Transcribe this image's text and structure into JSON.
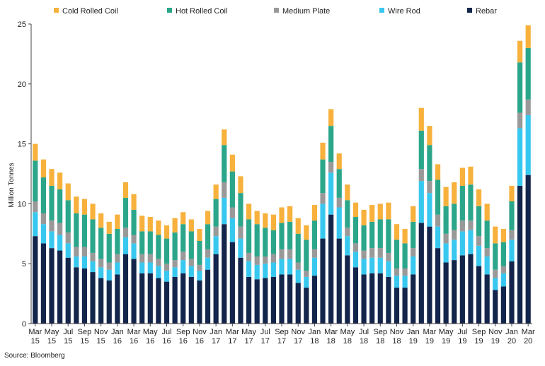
{
  "source": "Source: Bloomberg",
  "chart_data": {
    "type": "bar",
    "stacked": true,
    "ylabel": "Million Tonnes",
    "ylim": [
      0,
      25
    ],
    "yticks": [
      0,
      5,
      10,
      15,
      20,
      25
    ],
    "grid": false,
    "legend_position": "top",
    "x_tick_labels": [
      {
        "month": "Mar",
        "year": "15",
        "index": 0
      },
      {
        "month": "May",
        "year": "15",
        "index": 2
      },
      {
        "month": "Jul",
        "year": "15",
        "index": 4
      },
      {
        "month": "Sep",
        "year": "15",
        "index": 6
      },
      {
        "month": "Nov",
        "year": "15",
        "index": 8
      },
      {
        "month": "Jan",
        "year": "16",
        "index": 10
      },
      {
        "month": "Mar",
        "year": "16",
        "index": 12
      },
      {
        "month": "May",
        "year": "16",
        "index": 14
      },
      {
        "month": "Jul",
        "year": "16",
        "index": 16
      },
      {
        "month": "Sep",
        "year": "16",
        "index": 18
      },
      {
        "month": "Nov",
        "year": "16",
        "index": 20
      },
      {
        "month": "Jan",
        "year": "17",
        "index": 22
      },
      {
        "month": "Mar",
        "year": "17",
        "index": 24
      },
      {
        "month": "May",
        "year": "17",
        "index": 26
      },
      {
        "month": "Jul",
        "year": "17",
        "index": 28
      },
      {
        "month": "Sep",
        "year": "17",
        "index": 30
      },
      {
        "month": "Nov",
        "year": "17",
        "index": 32
      },
      {
        "month": "Jan",
        "year": "18",
        "index": 34
      },
      {
        "month": "Mar",
        "year": "18",
        "index": 36
      },
      {
        "month": "May",
        "year": "18",
        "index": 38
      },
      {
        "month": "Jul",
        "year": "18",
        "index": 40
      },
      {
        "month": "Sep",
        "year": "18",
        "index": 42
      },
      {
        "month": "Nov",
        "year": "18",
        "index": 44
      },
      {
        "month": "Jan",
        "year": "19",
        "index": 46
      },
      {
        "month": "Mar",
        "year": "19",
        "index": 48
      },
      {
        "month": "May",
        "year": "19",
        "index": 50
      },
      {
        "month": "Jul",
        "year": "19",
        "index": 52
      },
      {
        "month": "Sep",
        "year": "19",
        "index": 54
      },
      {
        "month": "Nov",
        "year": "19",
        "index": 56
      },
      {
        "month": "Jan",
        "year": "20",
        "index": 58
      },
      {
        "month": "Mar",
        "year": "20",
        "index": 60
      }
    ],
    "categories": [
      "Mar 15",
      "Apr 15",
      "May 15",
      "Jun 15",
      "Jul 15",
      "Aug 15",
      "Sep 15",
      "Oct 15",
      "Nov 15",
      "Dec 15",
      "Jan 16",
      "Feb 16",
      "Mar 16",
      "Apr 16",
      "May 16",
      "Jun 16",
      "Jul 16",
      "Aug 16",
      "Sep 16",
      "Oct 16",
      "Nov 16",
      "Dec 16",
      "Jan 17",
      "Feb 17",
      "Mar 17",
      "Apr 17",
      "May 17",
      "Jun 17",
      "Jul 17",
      "Aug 17",
      "Sep 17",
      "Oct 17",
      "Nov 17",
      "Dec 17",
      "Jan 18",
      "Feb 18",
      "Mar 18",
      "Apr 18",
      "May 18",
      "Jun 18",
      "Jul 18",
      "Aug 18",
      "Sep 18",
      "Oct 18",
      "Nov 18",
      "Dec 18",
      "Jan 19",
      "Feb 19",
      "Mar 19",
      "Apr 19",
      "May 19",
      "Jun 19",
      "Jul 19",
      "Aug 19",
      "Sep 19",
      "Oct 19",
      "Nov 19",
      "Dec 19",
      "Jan 20",
      "Feb 20",
      "Mar 20"
    ],
    "series": [
      {
        "name": "Rebar",
        "color": "#13254a",
        "values": [
          7.3,
          6.7,
          6.3,
          6.1,
          5.5,
          4.7,
          4.6,
          4.3,
          3.8,
          3.6,
          4.1,
          5.8,
          5.4,
          4.2,
          4.2,
          3.8,
          3.5,
          3.9,
          4.2,
          3.9,
          3.6,
          4.5,
          5.8,
          8.3,
          6.8,
          5.5,
          3.9,
          3.7,
          3.8,
          3.9,
          4.1,
          4.1,
          3.4,
          3.0,
          4.0,
          7.1,
          9.1,
          7.1,
          5.7,
          4.7,
          4.1,
          4.2,
          4.2,
          3.9,
          3.0,
          3.0,
          4.1,
          8.4,
          8.1,
          6.3,
          5.1,
          5.3,
          5.7,
          5.8,
          4.8,
          4.1,
          2.8,
          3.1,
          5.2,
          11.5,
          12.4
        ]
      },
      {
        "name": "Wire Rod",
        "color": "#38c8ef",
        "values": [
          2.0,
          1.6,
          1.4,
          1.3,
          1.2,
          0.9,
          1.0,
          0.9,
          0.9,
          0.9,
          1.0,
          1.4,
          1.3,
          0.9,
          0.9,
          1.0,
          0.9,
          0.8,
          1.1,
          0.9,
          0.8,
          1.0,
          1.5,
          2.2,
          2.0,
          1.6,
          1.3,
          1.2,
          1.2,
          1.2,
          1.3,
          1.3,
          1.1,
          0.9,
          1.5,
          2.9,
          3.5,
          2.6,
          1.6,
          1.3,
          1.3,
          1.3,
          1.3,
          1.3,
          1.0,
          1.0,
          1.5,
          3.5,
          2.8,
          1.8,
          1.6,
          1.7,
          2.0,
          2.0,
          1.7,
          1.5,
          1.0,
          1.1,
          1.8,
          4.8,
          5.0
        ]
      },
      {
        "name": "Medium Plate",
        "color": "#999999",
        "values": [
          0.9,
          0.9,
          0.9,
          1.0,
          0.9,
          0.8,
          0.8,
          0.7,
          0.7,
          0.6,
          0.7,
          0.8,
          0.7,
          0.7,
          0.7,
          0.6,
          0.6,
          0.6,
          0.7,
          0.6,
          0.5,
          0.7,
          0.8,
          1.3,
          0.9,
          1.0,
          0.7,
          0.7,
          0.6,
          0.7,
          0.8,
          0.8,
          0.6,
          0.5,
          0.7,
          0.9,
          0.9,
          0.8,
          0.7,
          0.7,
          0.7,
          0.8,
          0.8,
          0.7,
          0.6,
          0.6,
          0.7,
          1.0,
          1.0,
          1.0,
          0.8,
          0.8,
          0.9,
          0.8,
          0.8,
          0.7,
          0.7,
          0.6,
          0.8,
          1.3,
          1.3
        ]
      },
      {
        "name": "Hot Rolled Coil",
        "color": "#2ba68a",
        "values": [
          3.4,
          3.0,
          2.9,
          2.8,
          2.7,
          2.8,
          2.7,
          2.8,
          2.6,
          2.4,
          2.1,
          2.5,
          2.1,
          1.9,
          1.9,
          2.0,
          2.1,
          2.3,
          2.3,
          2.3,
          2.0,
          2.1,
          2.3,
          3.1,
          3.0,
          2.8,
          2.8,
          2.7,
          2.4,
          2.0,
          2.2,
          2.3,
          2.4,
          2.6,
          2.4,
          2.8,
          3.0,
          2.4,
          2.3,
          2.2,
          2.1,
          2.2,
          2.4,
          2.8,
          2.4,
          2.1,
          2.2,
          3.2,
          3.0,
          2.9,
          2.3,
          2.2,
          2.9,
          3.0,
          2.5,
          2.3,
          2.2,
          2.0,
          2.4,
          4.2,
          4.3
        ]
      },
      {
        "name": "Cold Rolled Coil",
        "color": "#f7b13c",
        "values": [
          1.4,
          1.5,
          1.4,
          1.4,
          1.4,
          1.4,
          1.3,
          1.3,
          1.2,
          1.0,
          1.2,
          1.3,
          1.3,
          1.3,
          1.2,
          1.2,
          1.1,
          1.2,
          1.0,
          1.0,
          1.0,
          1.1,
          1.2,
          1.3,
          1.4,
          1.4,
          1.3,
          1.1,
          1.2,
          1.3,
          1.3,
          1.3,
          1.3,
          1.2,
          1.3,
          1.4,
          1.4,
          1.3,
          1.3,
          1.2,
          1.3,
          1.4,
          1.3,
          1.4,
          1.3,
          1.2,
          1.3,
          1.9,
          1.6,
          1.3,
          1.6,
          1.8,
          1.5,
          1.5,
          1.4,
          1.4,
          1.4,
          1.1,
          1.3,
          1.8,
          1.9
        ]
      }
    ],
    "legend_order": [
      "Cold Rolled Coil",
      "Hot Rolled Coil",
      "Medium Plate",
      "Wire Rod",
      "Rebar"
    ]
  }
}
